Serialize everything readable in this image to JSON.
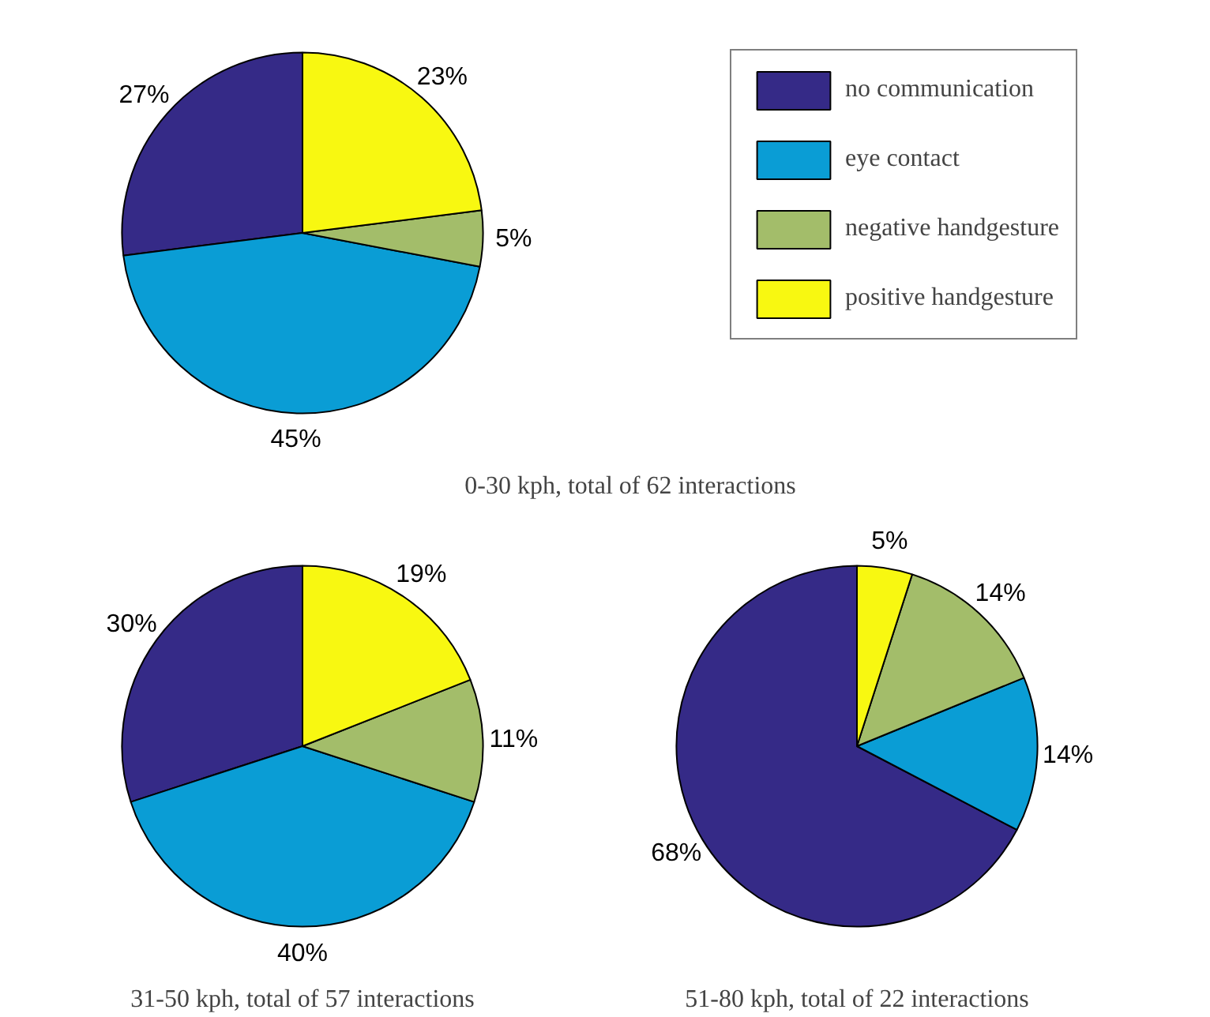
{
  "chart_data": [
    {
      "type": "pie",
      "title": "0-30 kph, total of 62 interactions",
      "categories": [
        "no communication",
        "eye contact",
        "negative handgesture",
        "positive handgesture"
      ],
      "values": [
        27,
        45,
        5,
        23
      ],
      "value_labels": [
        "27%",
        "45%",
        "5%",
        "23%"
      ],
      "colors": [
        "#352a87",
        "#0a9dd5",
        "#a3bd6a",
        "#f8f811"
      ],
      "legend": "right"
    },
    {
      "type": "pie",
      "title": "31-50 kph, total of 57 interactions",
      "values": [
        30,
        40,
        11,
        19
      ],
      "value_labels": [
        "30%",
        "40%",
        "11%",
        "19%"
      ],
      "colors": [
        "#352a87",
        "#0a9dd5",
        "#a3bd6a",
        "#f8f811"
      ]
    },
    {
      "type": "pie",
      "title": "51-80 kph, total of 22 interactions",
      "values": [
        68,
        14,
        14,
        5
      ],
      "value_labels": [
        "68%",
        "14%",
        "14%",
        "5%"
      ],
      "colors": [
        "#352a87",
        "#0a9dd5",
        "#a3bd6a",
        "#f8f811"
      ]
    }
  ]
}
